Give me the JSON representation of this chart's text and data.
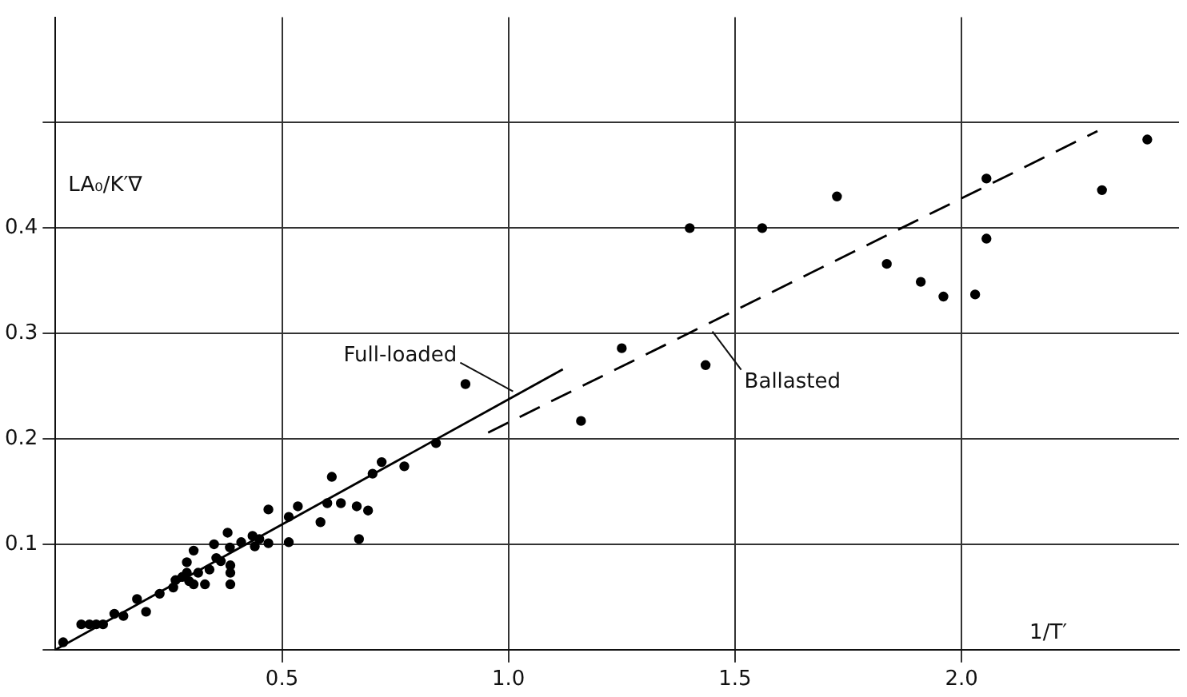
{
  "chart_data": {
    "type": "scatter",
    "xlabel": "1/T′",
    "ylabel": "LA₀/K′∇",
    "xlim": [
      0,
      2.48
    ],
    "ylim": [
      0,
      0.6
    ],
    "xticks": [
      {
        "value": 0.5,
        "label": "0.5"
      },
      {
        "value": 1,
        "label": "1.0"
      },
      {
        "value": 1.5,
        "label": "1.5"
      },
      {
        "value": 2,
        "label": "2.0"
      }
    ],
    "yticks": [
      {
        "value": 0,
        "label": null
      },
      0.1,
      0.2,
      0.3,
      0.4,
      {
        "value": 0.5,
        "label": null
      }
    ],
    "grid": true,
    "legend": false,
    "marker": "circle",
    "series": [
      {
        "color": "#000000",
        "x": [
          0.017,
          0.057,
          0.075,
          0.09,
          0.105,
          0.13,
          0.15,
          0.18,
          0.2,
          0.23,
          0.26,
          0.265,
          0.28,
          0.29,
          0.295,
          0.305,
          0.315,
          0.33,
          0.34,
          0.29,
          0.305,
          0.35,
          0.355,
          0.365,
          0.38,
          0.385,
          0.386,
          0.386,
          0.386,
          0.41,
          0.435,
          0.44,
          0.45,
          0.47,
          0.47,
          0.515,
          0.515,
          0.535,
          0.585,
          0.6,
          0.61,
          0.63,
          0.665,
          0.67,
          0.69,
          0.7,
          0.72,
          0.77,
          0.84,
          0.905,
          1.16,
          1.25,
          1.435,
          1.4,
          1.56,
          1.725,
          1.835,
          1.91,
          1.96,
          2.03,
          2.055,
          2.055,
          2.31,
          2.41
        ],
        "values": [
          0.007,
          0.024,
          0.024,
          0.024,
          0.024,
          0.034,
          0.032,
          0.048,
          0.036,
          0.053,
          0.059,
          0.066,
          0.069,
          0.073,
          0.065,
          0.062,
          0.073,
          0.062,
          0.076,
          0.083,
          0.094,
          0.1,
          0.087,
          0.084,
          0.111,
          0.097,
          0.08,
          0.073,
          0.062,
          0.102,
          0.108,
          0.098,
          0.105,
          0.101,
          0.133,
          0.102,
          0.126,
          0.136,
          0.121,
          0.139,
          0.164,
          0.139,
          0.136,
          0.105,
          0.132,
          0.167,
          0.178,
          0.174,
          0.196,
          0.252,
          0.217,
          0.286,
          0.27,
          0.4,
          0.4,
          0.43,
          0.366,
          0.349,
          0.335,
          0.337,
          0.39,
          0.447,
          0.436,
          0.484
        ]
      },
      {
        "type": "line",
        "color": "#000000",
        "line_style": "solid",
        "marker": "none",
        "x": [
          0,
          1.12
        ],
        "values": [
          0,
          0.266
        ]
      },
      {
        "type": "line",
        "color": "#000000",
        "line_style": "dashed",
        "marker": "none",
        "x": [
          0.955,
          2.3
        ],
        "values": [
          0.206,
          0.492
        ]
      }
    ],
    "annotations": [
      {
        "text": "Full-loaded",
        "x": 1.01,
        "y": 0.245
      },
      {
        "text": "Ballasted",
        "x": 1.45,
        "y": 0.302
      }
    ]
  }
}
